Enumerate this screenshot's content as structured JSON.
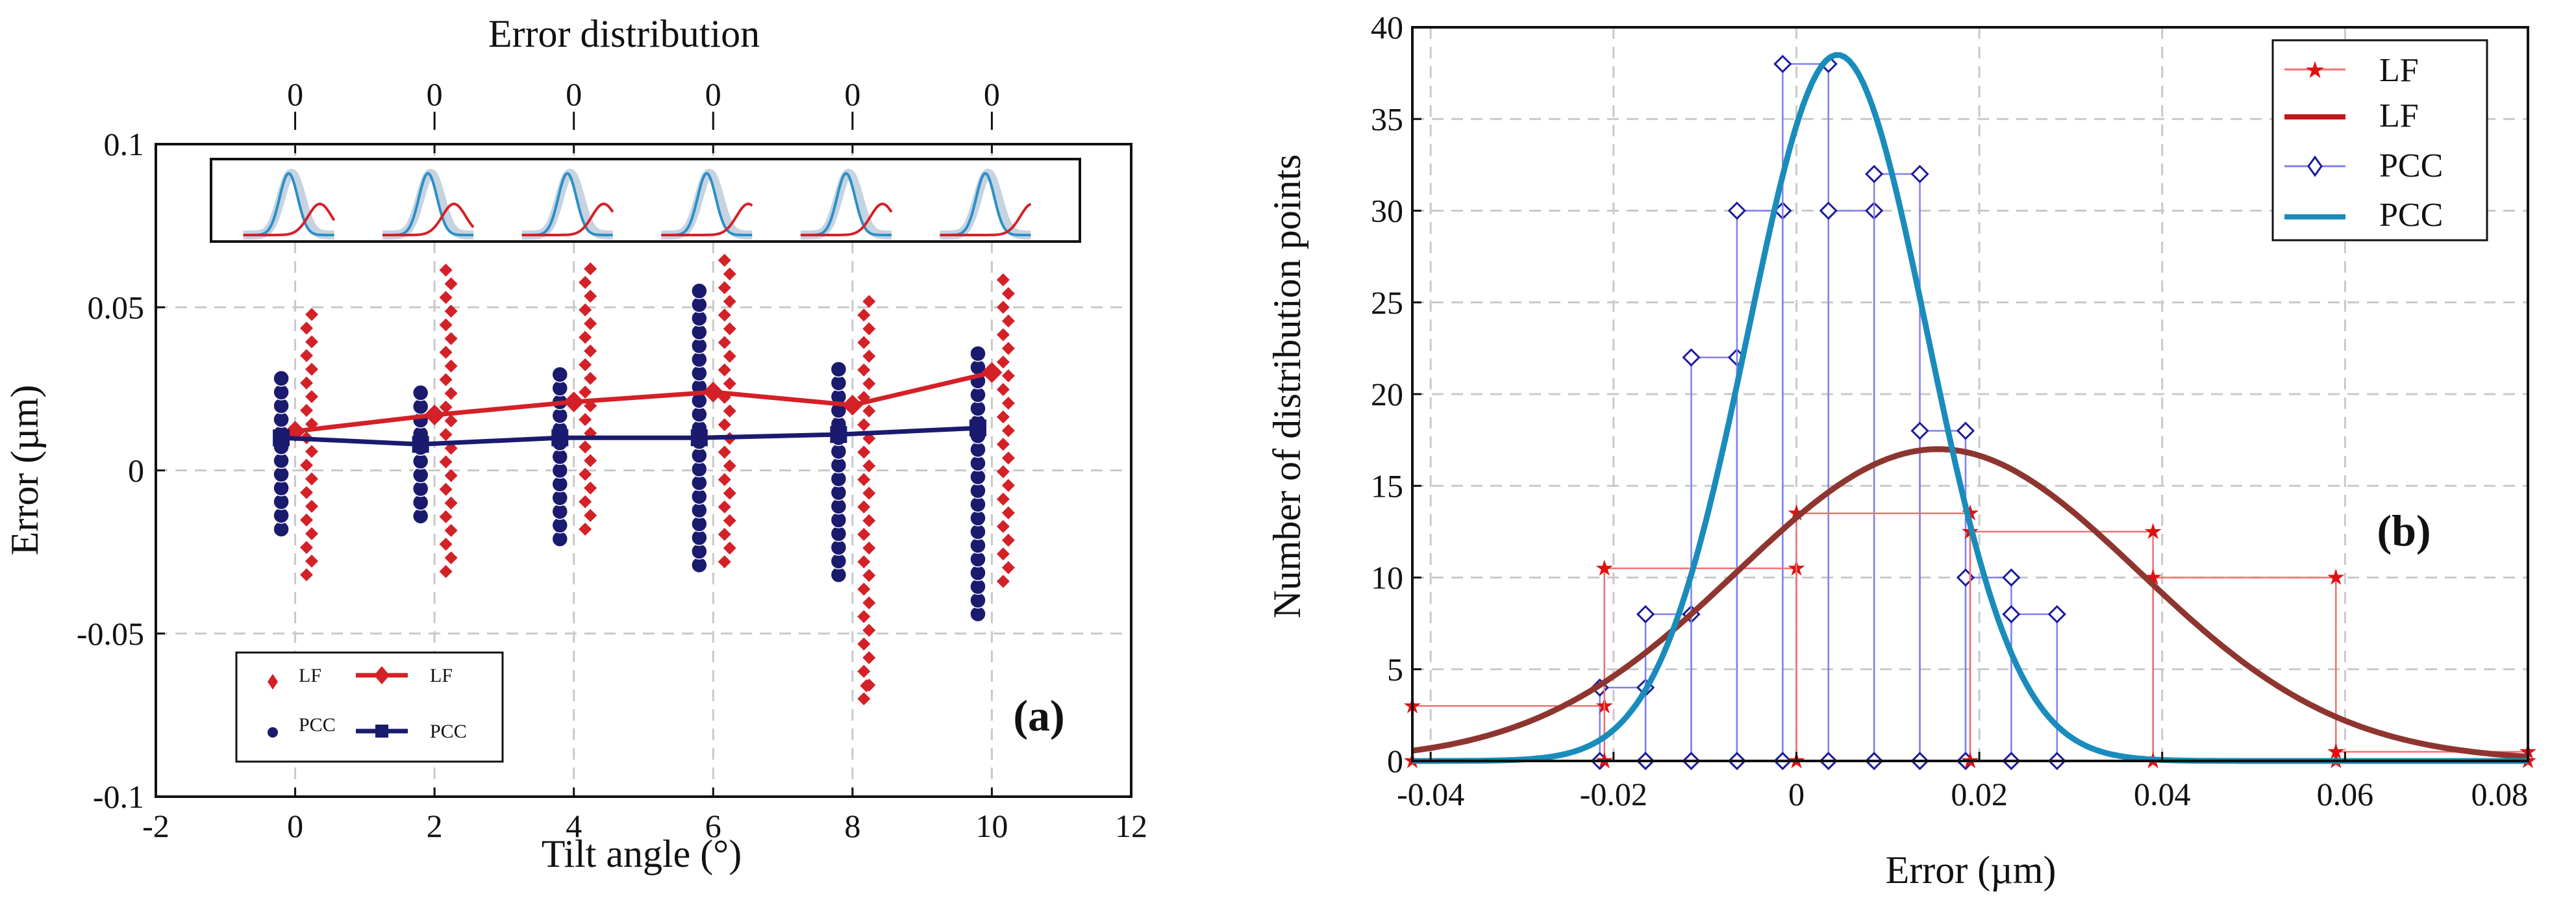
{
  "chart_data": [
    {
      "panel": "a",
      "type": "scatter",
      "panel_label": "(a)",
      "xlabel": "Tilt angle (°)",
      "ylabel": "Error (µm)",
      "top_label": "Error distribution",
      "xlim": [
        -2,
        12
      ],
      "ylim": [
        -0.1,
        0.1
      ],
      "xticks": [
        -2,
        0,
        2,
        4,
        6,
        8,
        10,
        12
      ],
      "yticks": [
        -0.1,
        -0.05,
        0,
        0.05,
        0.1
      ],
      "top_ticks": [
        "0",
        "0",
        "0",
        "0",
        "0",
        "0"
      ],
      "grid": true,
      "legend_position": "bottom-left",
      "colors": {
        "lf": "#d42027",
        "pcc": "#1a1a6e",
        "pcc_light": "#2a8fc8",
        "shade": "#b8c8d8"
      },
      "legend": [
        "LF",
        "LF",
        "PCC",
        "PCC"
      ],
      "scatter": [
        {
          "name": "LF",
          "angles": [
            0,
            2,
            4,
            6,
            8,
            10
          ],
          "offset": 0.2,
          "min": [
            -0.032,
            -0.031,
            -0.018,
            -0.028,
            -0.07,
            -0.034
          ],
          "max": [
            0.051,
            0.065,
            0.062,
            0.065,
            0.055,
            0.06
          ]
        },
        {
          "name": "PCC",
          "angles": [
            0,
            2,
            4,
            6,
            8,
            10
          ],
          "offset": -0.2,
          "min": [
            -0.018,
            -0.014,
            -0.021,
            -0.029,
            -0.032,
            -0.044
          ],
          "max": [
            0.03,
            0.026,
            0.033,
            0.055,
            0.034,
            0.039
          ]
        }
      ],
      "series": [
        {
          "name": "LF",
          "x": [
            0,
            2,
            4,
            6,
            8,
            10
          ],
          "values": [
            0.012,
            0.017,
            0.021,
            0.024,
            0.02,
            0.03
          ]
        },
        {
          "name": "PCC",
          "x": [
            -0.2,
            1.8,
            3.8,
            5.8,
            7.8,
            9.8
          ],
          "values": [
            0.01,
            0.008,
            0.01,
            0.01,
            0.011,
            0.013
          ]
        }
      ],
      "inset_peaks": [
        {
          "pcc_mean": 0.0,
          "lf_mean": 0.12
        },
        {
          "pcc_mean": 0.0,
          "lf_mean": 0.1
        },
        {
          "pcc_mean": 0.0,
          "lf_mean": 0.14
        },
        {
          "pcc_mean": 0.0,
          "lf_mean": 0.16
        },
        {
          "pcc_mean": 0.0,
          "lf_mean": 0.14
        },
        {
          "pcc_mean": 0.0,
          "lf_mean": 0.18
        }
      ]
    },
    {
      "panel": "b",
      "type": "line",
      "panel_label": "(b)",
      "xlabel": "Error (µm)",
      "ylabel": "Number of distribution points",
      "xlim": [
        -0.042,
        0.08
      ],
      "ylim": [
        0,
        40
      ],
      "xticks": [
        -0.04,
        -0.02,
        0,
        0.02,
        0.04,
        0.06,
        0.08
      ],
      "xtick_labels": [
        "-0.04",
        "-0.02",
        "0",
        "0.02",
        "0.04",
        "0.06",
        "0.08"
      ],
      "yticks": [
        0,
        5,
        10,
        15,
        20,
        25,
        30,
        35,
        40
      ],
      "grid": true,
      "legend_position": "top-right",
      "colors": {
        "lf_hist": "#f07070",
        "lf_marker": "#e01010",
        "lf_fit": "#8e3530",
        "pcc_hist": "#8080f0",
        "pcc_marker": "#1a1aa0",
        "pcc_fit": "#1a8cbc"
      },
      "legend": [
        "LF",
        "LF",
        "PCC",
        "PCC"
      ],
      "lf_hist": {
        "edges": [
          -0.042,
          -0.021,
          0,
          0.019,
          0.039,
          0.059,
          0.08
        ],
        "counts": [
          3,
          10.5,
          13.5,
          12.5,
          10,
          0.5
        ]
      },
      "pcc_hist": {
        "edges": [
          -0.0215,
          -0.0165,
          -0.0115,
          -0.0065,
          -0.0015,
          0.0035,
          0.0085,
          0.0135,
          0.0185,
          0.0235,
          0.0285
        ],
        "counts": [
          4,
          8,
          22,
          30,
          38,
          30,
          32,
          18,
          10,
          8
        ]
      },
      "lf_fit": {
        "peak": 17,
        "mean": 0.0155,
        "sd": 0.022
      },
      "pcc_fit": {
        "peak": 38.5,
        "mean": 0.0045,
        "sd": 0.0098
      }
    }
  ]
}
